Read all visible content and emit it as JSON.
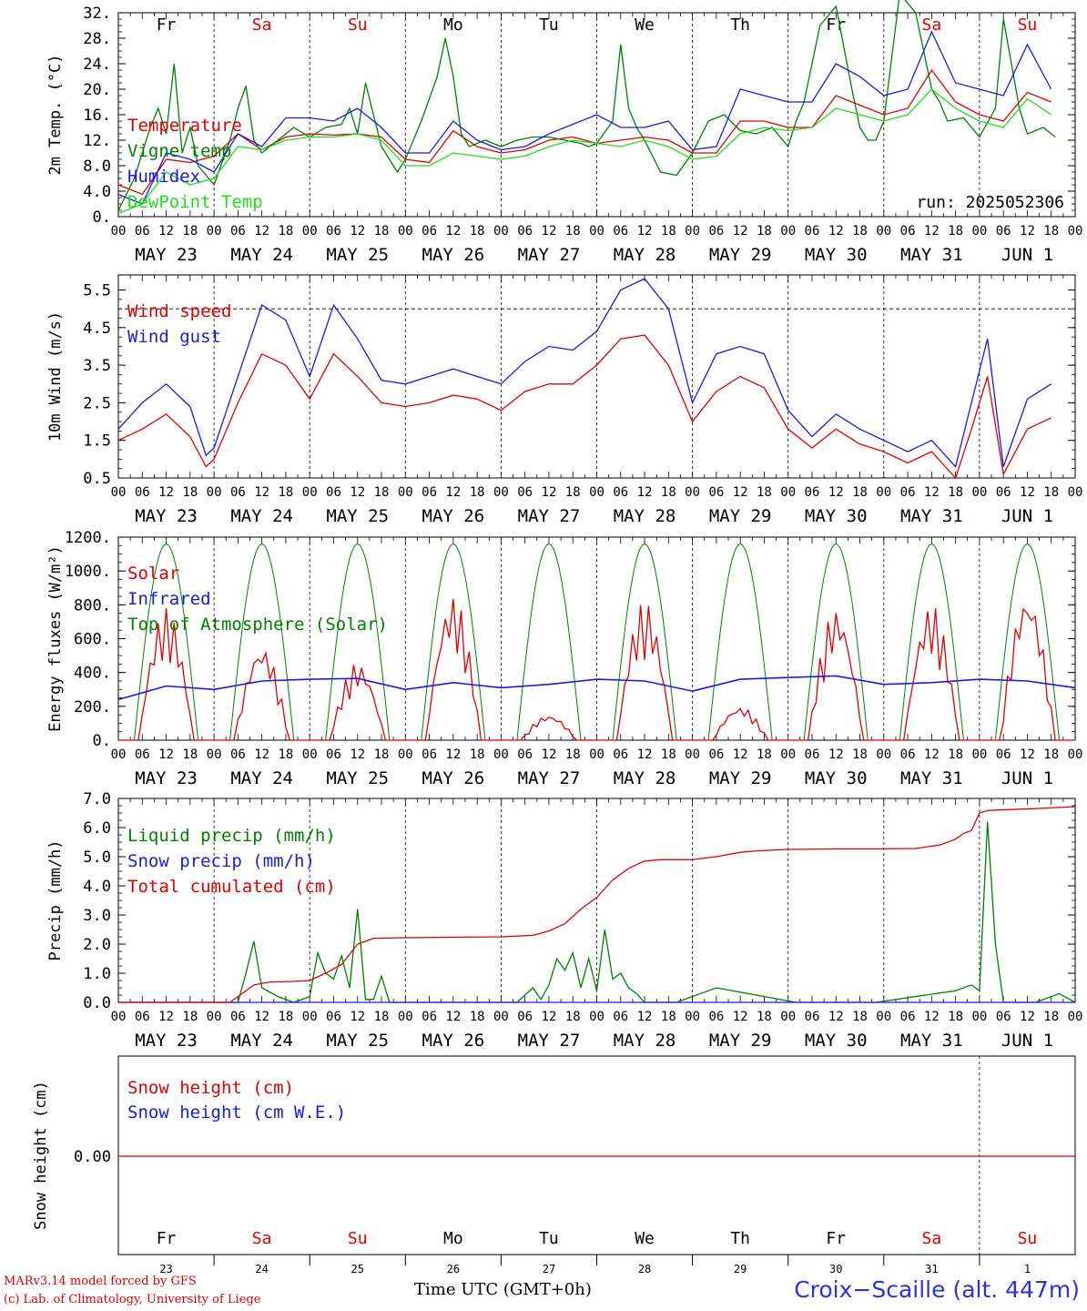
{
  "run_label": "run: 2025052306",
  "hour_ticks": [
    "00",
    "06",
    "12",
    "18"
  ],
  "last_hour_tick": "00",
  "date_labels": [
    "MAY 23",
    "MAY 24",
    "MAY 25",
    "MAY 26",
    "MAY 27",
    "MAY 28",
    "MAY 29",
    "MAY 30",
    "MAY 31",
    "JUN  1"
  ],
  "weekday_labels": [
    "Fr",
    "Sa",
    "Su",
    "Mo",
    "Tu",
    "We",
    "Th",
    "Fr",
    "Sa",
    "Su"
  ],
  "weekend_days": [
    1,
    2,
    8,
    9
  ],
  "bottom_day_numbers": [
    "23",
    "24",
    "25",
    "26",
    "27",
    "28",
    "29",
    "30",
    "31",
    "1"
  ],
  "footer": {
    "line1": "MARv3.14 model forced by GFS",
    "line2": "(c) Lab. of Climatology, University of Liege",
    "time_axis": "Time UTC (GMT+0h)",
    "station": "Croix−Scaille (alt. 447m)"
  },
  "colors": {
    "red": "#e00000",
    "green": "#008000",
    "blue": "#1a1ae6",
    "lightgreen": "#22dd22"
  },
  "chart_data": [
    {
      "type": "line",
      "ylabel": "2m Temp. (°C)",
      "ylim": [
        0,
        32
      ],
      "ytick_labels": [
        "0.",
        "4.0",
        "8.0",
        "12.",
        "16.",
        "20.",
        "24.",
        "28.",
        "32."
      ],
      "x_unit": "hours since 2025-05-23 00 UTC",
      "show_weekdays": true,
      "series": [
        {
          "name": "Temperature",
          "color": "#e00000",
          "x": [
            0,
            6,
            12,
            18,
            24,
            30,
            36,
            42,
            48,
            54,
            60,
            66,
            72,
            78,
            84,
            90,
            96,
            102,
            108,
            114,
            120,
            126,
            132,
            138,
            144,
            150,
            156,
            162,
            168,
            174,
            180,
            186,
            192,
            198,
            204,
            210,
            216,
            222,
            228,
            234
          ],
          "y": [
            5,
            3.5,
            9,
            8.5,
            9.5,
            13,
            10.5,
            12.5,
            13,
            12.8,
            13,
            12.5,
            9,
            8.5,
            13.5,
            11,
            10,
            10.5,
            12,
            12.5,
            11.5,
            12,
            12.5,
            12,
            10,
            10,
            15,
            15,
            14,
            14,
            19,
            17.5,
            16,
            17,
            23,
            18,
            16,
            15,
            19.5,
            18
          ]
        },
        {
          "name": "Vigne temp",
          "color": "#008000",
          "x": [
            0,
            4,
            8,
            10,
            12,
            14,
            16,
            18,
            20,
            24,
            28,
            30,
            32,
            34,
            36,
            40,
            44,
            48,
            52,
            56,
            58,
            60,
            62,
            66,
            70,
            72,
            76,
            80,
            82,
            84,
            86,
            88,
            92,
            96,
            100,
            104,
            108,
            112,
            116,
            118,
            120,
            124,
            126,
            128,
            130,
            132,
            136,
            140,
            144,
            148,
            152,
            156,
            160,
            164,
            168,
            170,
            172,
            176,
            180,
            184,
            186,
            188,
            190,
            192,
            196,
            200,
            204,
            206,
            208,
            212,
            216,
            220,
            222,
            226,
            228,
            232,
            235
          ],
          "y": [
            1,
            6,
            14,
            17,
            13,
            24,
            10,
            14,
            8,
            5,
            12,
            17,
            20.5,
            12,
            10,
            12,
            14,
            12.5,
            14,
            14.5,
            17,
            13,
            21,
            11,
            7,
            9,
            15,
            22,
            28,
            22,
            13,
            11,
            12,
            11,
            12,
            12.5,
            12.5,
            12,
            11.5,
            11,
            11.5,
            15,
            27,
            17,
            14,
            12,
            7,
            6.5,
            10,
            15,
            16,
            13.5,
            13,
            14,
            11,
            15,
            18,
            30,
            33,
            20,
            14,
            12,
            12,
            15,
            35,
            32,
            20,
            18,
            15,
            15.5,
            12.5,
            17,
            31,
            17,
            13,
            14,
            12.5
          ]
        },
        {
          "name": "Humidex",
          "color": "#1a1ae6",
          "x": [
            0,
            6,
            12,
            18,
            24,
            30,
            36,
            42,
            48,
            54,
            60,
            66,
            72,
            78,
            84,
            90,
            96,
            102,
            108,
            114,
            120,
            126,
            132,
            138,
            144,
            150,
            156,
            162,
            168,
            174,
            180,
            186,
            192,
            198,
            204,
            210,
            216,
            222,
            228,
            234
          ],
          "y": [
            3.5,
            2,
            10,
            9,
            7,
            13,
            11,
            15.5,
            15.5,
            15,
            17,
            14,
            10,
            10,
            15,
            12,
            10.5,
            11,
            13,
            14.5,
            16,
            14,
            14,
            15,
            10.5,
            11,
            20,
            19,
            18,
            18,
            24,
            22,
            19,
            20,
            29,
            21,
            20,
            19,
            27,
            20
          ]
        },
        {
          "name": "DewPoint Temp",
          "color": "#22dd22",
          "x": [
            0,
            6,
            12,
            18,
            24,
            30,
            36,
            42,
            48,
            54,
            60,
            66,
            72,
            78,
            84,
            90,
            96,
            102,
            108,
            114,
            120,
            126,
            132,
            138,
            144,
            150,
            156,
            162,
            168,
            174,
            180,
            186,
            192,
            198,
            204,
            210,
            216,
            222,
            228,
            234
          ],
          "y": [
            0.5,
            2,
            7,
            5,
            6,
            11,
            10.5,
            12,
            12.5,
            12.5,
            13,
            12,
            8,
            8,
            10,
            9.5,
            9,
            9.5,
            11,
            12,
            11.5,
            11,
            12,
            11,
            9,
            9.5,
            13,
            14,
            13.5,
            14,
            17,
            16,
            15,
            16,
            20,
            17,
            15,
            14,
            18.5,
            16
          ]
        }
      ],
      "annotations": []
    },
    {
      "type": "line",
      "ylabel": "10m Wind (m/s)",
      "ylim": [
        0.5,
        5.9
      ],
      "ytick_labels": [
        "0.5",
        "1.5",
        "2.5",
        "3.5",
        "4.5",
        "5.5"
      ],
      "reference_line": 5,
      "x_unit": "hours since 2025-05-23 00 UTC",
      "series": [
        {
          "name": "Wind speed",
          "color": "#e00000",
          "x": [
            0,
            6,
            12,
            18,
            22,
            24,
            30,
            36,
            42,
            48,
            54,
            60,
            66,
            72,
            78,
            84,
            90,
            96,
            102,
            108,
            114,
            120,
            126,
            132,
            138,
            144,
            150,
            156,
            162,
            168,
            174,
            180,
            186,
            192,
            198,
            204,
            210,
            214,
            218,
            222,
            228,
            234
          ],
          "y": [
            1.5,
            1.8,
            2.2,
            1.6,
            0.8,
            1,
            2.5,
            3.8,
            3.5,
            2.6,
            3.8,
            3.2,
            2.5,
            2.4,
            2.5,
            2.7,
            2.6,
            2.3,
            2.8,
            3,
            3,
            3.5,
            4.2,
            4.3,
            3.5,
            2,
            2.8,
            3.2,
            2.9,
            1.8,
            1.3,
            1.8,
            1.4,
            1.2,
            0.9,
            1.2,
            0.5,
            1.8,
            3.2,
            0.6,
            1.8,
            2.1
          ]
        },
        {
          "name": "Wind gust",
          "color": "#1a1ae6",
          "x": [
            0,
            6,
            12,
            18,
            22,
            24,
            30,
            36,
            42,
            48,
            54,
            60,
            66,
            72,
            78,
            84,
            90,
            96,
            102,
            108,
            114,
            120,
            126,
            132,
            138,
            144,
            150,
            156,
            162,
            168,
            174,
            180,
            186,
            192,
            198,
            204,
            210,
            214,
            218,
            222,
            228,
            234
          ],
          "y": [
            1.8,
            2.5,
            3,
            2.4,
            1.1,
            1.3,
            3.2,
            5.1,
            4.7,
            3.2,
            5.1,
            4.2,
            3.1,
            3,
            3.2,
            3.4,
            3.2,
            3,
            3.6,
            4,
            3.9,
            4.4,
            5.5,
            5.8,
            5,
            2.5,
            3.8,
            4,
            3.8,
            2.3,
            1.6,
            2.2,
            1.8,
            1.5,
            1.2,
            1.5,
            0.8,
            2.5,
            4.2,
            0.8,
            2.6,
            3
          ]
        }
      ]
    },
    {
      "type": "line",
      "ylabel": "Energy fluxes (W/m²)",
      "ylim": [
        0,
        1200
      ],
      "ytick_labels": [
        "0.",
        "200.",
        "400.",
        "600.",
        "800.",
        "1000.",
        "1200."
      ],
      "x_unit": "hours since 2025-05-23 00 UTC",
      "solar_daily_peaks": [
        780,
        560,
        460,
        850,
        150,
        820,
        200,
        780,
        800,
        870
      ],
      "series": [
        {
          "name": "Solar",
          "color": "#e00000"
        },
        {
          "name": "Infrared",
          "color": "#1a1ae6",
          "x": [
            0,
            12,
            24,
            36,
            48,
            60,
            72,
            84,
            96,
            108,
            120,
            132,
            144,
            156,
            168,
            180,
            192,
            204,
            216,
            228,
            240
          ],
          "y": [
            240,
            320,
            300,
            350,
            360,
            365,
            300,
            340,
            310,
            330,
            360,
            350,
            290,
            360,
            370,
            380,
            330,
            340,
            360,
            350,
            310
          ]
        },
        {
          "name": "Top of Atmosphere (Solar)",
          "color": "#008000",
          "daily_peak": 1160,
          "sunrise_h": 4,
          "sunset_h": 20
        }
      ]
    },
    {
      "type": "line",
      "ylabel": "Precip (mm/h)",
      "ylim": [
        0,
        7
      ],
      "ytick_labels": [
        "0.0",
        "1.0",
        "2.0",
        "3.0",
        "4.0",
        "5.0",
        "6.0",
        "7.0"
      ],
      "x_unit": "hours since 2025-05-23 00 UTC",
      "series": [
        {
          "name": "Liquid precip (mm/h)",
          "color": "#008000",
          "x": [
            0,
            30,
            32,
            34,
            36,
            40,
            44,
            48,
            50,
            52,
            54,
            56,
            58,
            60,
            62,
            64,
            66,
            68,
            100,
            104,
            106,
            108,
            110,
            112,
            114,
            116,
            118,
            120,
            122,
            124,
            126,
            128,
            130,
            132,
            136,
            140,
            150,
            158,
            170,
            190,
            210,
            212,
            214,
            216,
            218,
            220,
            222,
            230,
            236,
            240
          ],
          "y": [
            0,
            0,
            1,
            2.1,
            0.5,
            0.2,
            0,
            0.2,
            1.7,
            1,
            0.8,
            1.6,
            0.5,
            3.2,
            0.1,
            0.1,
            0.9,
            0,
            0,
            0.5,
            0.1,
            0.6,
            1.5,
            1.1,
            1.7,
            0.5,
            1.5,
            0.4,
            2.5,
            0.8,
            1,
            0.5,
            0.3,
            0,
            0,
            0,
            0.5,
            0.3,
            0,
            0,
            0.4,
            0.5,
            0.6,
            0.4,
            6.2,
            2,
            0,
            0,
            0.3,
            0
          ]
        },
        {
          "name": "Snow precip (mm/h)",
          "color": "#1a1ae6",
          "x": [
            0,
            240
          ],
          "y": [
            0,
            0
          ]
        },
        {
          "name": "Total cumulated (cm)",
          "color": "#e00000",
          "x": [
            0,
            28,
            30,
            34,
            38,
            44,
            48,
            52,
            56,
            60,
            64,
            72,
            96,
            104,
            108,
            112,
            116,
            120,
            124,
            128,
            132,
            136,
            140,
            144,
            150,
            156,
            160,
            168,
            180,
            190,
            200,
            206,
            210,
            212,
            214,
            216,
            218,
            220,
            230,
            240
          ],
          "y": [
            0,
            0,
            0.2,
            0.6,
            0.7,
            0.72,
            0.75,
            1,
            1.3,
            2,
            2.2,
            2.22,
            2.25,
            2.3,
            2.45,
            2.7,
            3.2,
            3.6,
            4.2,
            4.6,
            4.85,
            4.9,
            4.9,
            4.9,
            5,
            5.15,
            5.2,
            5.25,
            5.27,
            5.27,
            5.28,
            5.4,
            5.6,
            5.8,
            5.9,
            6.5,
            6.58,
            6.6,
            6.65,
            6.72
          ]
        }
      ]
    },
    {
      "type": "line",
      "ylabel": "Snow height (cm)",
      "ytick_labels": [
        "0.00"
      ],
      "series": [
        {
          "name": "Snow height (cm)",
          "color": "#e00000",
          "x": [
            0,
            240
          ],
          "y": [
            0,
            0
          ]
        },
        {
          "name": "Snow height (cm W.E.)",
          "color": "#1a1ae6",
          "x": [
            0,
            240
          ],
          "y": [
            0,
            0
          ]
        }
      ]
    }
  ]
}
